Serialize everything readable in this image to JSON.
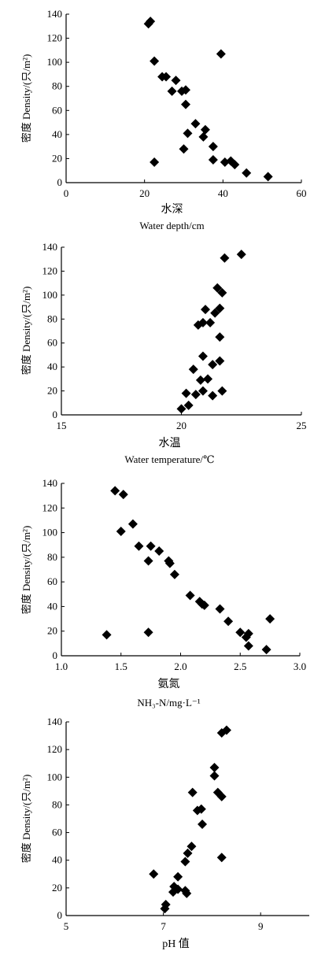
{
  "chart_data": [
    {
      "type": "scatter",
      "ylabel": "密度 Density/(只/m²)",
      "xlabel_cn": "水深",
      "xlabel_en": "Water depth/cm",
      "xlim": [
        0,
        60
      ],
      "ylim": [
        0,
        140
      ],
      "xticks": [
        0,
        20,
        40,
        60
      ],
      "xtick_labels": [
        "0",
        "20",
        "40",
        "60"
      ],
      "yticks": [
        0,
        20,
        40,
        60,
        80,
        100,
        120,
        140
      ],
      "ytick_labels": [
        "0",
        "20",
        "40",
        "60",
        "80",
        "100",
        "120",
        "140"
      ],
      "grid": false,
      "marker": "diamond",
      "points": [
        {
          "x": 21,
          "y": 132
        },
        {
          "x": 21.5,
          "y": 134
        },
        {
          "x": 39.5,
          "y": 107
        },
        {
          "x": 22.5,
          "y": 101
        },
        {
          "x": 24.5,
          "y": 88
        },
        {
          "x": 25.5,
          "y": 88
        },
        {
          "x": 28,
          "y": 85
        },
        {
          "x": 27,
          "y": 76
        },
        {
          "x": 29.5,
          "y": 76
        },
        {
          "x": 30.5,
          "y": 77
        },
        {
          "x": 30.5,
          "y": 65
        },
        {
          "x": 33,
          "y": 49
        },
        {
          "x": 35.5,
          "y": 44
        },
        {
          "x": 31,
          "y": 41
        },
        {
          "x": 35,
          "y": 38
        },
        {
          "x": 37.5,
          "y": 30
        },
        {
          "x": 30,
          "y": 28
        },
        {
          "x": 37.5,
          "y": 19
        },
        {
          "x": 40.5,
          "y": 17
        },
        {
          "x": 42,
          "y": 18
        },
        {
          "x": 43,
          "y": 15
        },
        {
          "x": 22.5,
          "y": 17
        },
        {
          "x": 46,
          "y": 8
        },
        {
          "x": 51.5,
          "y": 5
        }
      ]
    },
    {
      "type": "scatter",
      "ylabel": "密度 Density/(只/m²)",
      "xlabel_cn": "水温",
      "xlabel_en": "Water temperature/℃",
      "xlim": [
        15,
        25
      ],
      "ylim": [
        0,
        140
      ],
      "xticks": [
        15,
        20,
        25
      ],
      "xtick_labels": [
        "15",
        "20",
        "25"
      ],
      "yticks": [
        0,
        20,
        40,
        60,
        80,
        100,
        120,
        140
      ],
      "ytick_labels": [
        "0",
        "20",
        "40",
        "60",
        "80",
        "100",
        "120",
        "140"
      ],
      "grid": false,
      "marker": "diamond",
      "points": [
        {
          "x": 22.5,
          "y": 134
        },
        {
          "x": 21.8,
          "y": 131
        },
        {
          "x": 21.5,
          "y": 106
        },
        {
          "x": 21.7,
          "y": 102
        },
        {
          "x": 21.6,
          "y": 89
        },
        {
          "x": 21.0,
          "y": 88
        },
        {
          "x": 21.4,
          "y": 85
        },
        {
          "x": 20.9,
          "y": 77
        },
        {
          "x": 21.2,
          "y": 77
        },
        {
          "x": 20.7,
          "y": 75
        },
        {
          "x": 21.6,
          "y": 65
        },
        {
          "x": 20.9,
          "y": 49
        },
        {
          "x": 21.6,
          "y": 45
        },
        {
          "x": 21.3,
          "y": 42
        },
        {
          "x": 20.5,
          "y": 38
        },
        {
          "x": 21.1,
          "y": 30
        },
        {
          "x": 20.8,
          "y": 29
        },
        {
          "x": 21.7,
          "y": 20
        },
        {
          "x": 20.9,
          "y": 20
        },
        {
          "x": 20.2,
          "y": 18
        },
        {
          "x": 20.6,
          "y": 17
        },
        {
          "x": 21.3,
          "y": 16
        },
        {
          "x": 20.3,
          "y": 8
        },
        {
          "x": 20.0,
          "y": 5
        }
      ]
    },
    {
      "type": "scatter",
      "ylabel": "密度 Density/(只/m²)",
      "xlabel_cn": "氨氮",
      "xlabel_en": "NH₃-N/mg·L⁻¹",
      "xlim": [
        1.0,
        3.0
      ],
      "ylim": [
        0,
        140
      ],
      "xticks": [
        1.0,
        1.5,
        2.0,
        2.5,
        3.0
      ],
      "xtick_labels": [
        "1.0",
        "1.5",
        "2.0",
        "2.5",
        "3.0"
      ],
      "yticks": [
        0,
        20,
        40,
        60,
        80,
        100,
        120,
        140
      ],
      "ytick_labels": [
        "0",
        "20",
        "40",
        "60",
        "80",
        "100",
        "120",
        "140"
      ],
      "grid": false,
      "marker": "diamond",
      "points": [
        {
          "x": 1.45,
          "y": 134
        },
        {
          "x": 1.52,
          "y": 131
        },
        {
          "x": 1.6,
          "y": 107
        },
        {
          "x": 1.5,
          "y": 101
        },
        {
          "x": 1.65,
          "y": 89
        },
        {
          "x": 1.75,
          "y": 89
        },
        {
          "x": 1.82,
          "y": 85
        },
        {
          "x": 1.73,
          "y": 77
        },
        {
          "x": 1.9,
          "y": 77
        },
        {
          "x": 1.91,
          "y": 75
        },
        {
          "x": 1.95,
          "y": 66
        },
        {
          "x": 2.08,
          "y": 49
        },
        {
          "x": 2.16,
          "y": 44
        },
        {
          "x": 2.18,
          "y": 42
        },
        {
          "x": 2.2,
          "y": 41
        },
        {
          "x": 2.33,
          "y": 38
        },
        {
          "x": 2.75,
          "y": 30
        },
        {
          "x": 2.4,
          "y": 28
        },
        {
          "x": 1.73,
          "y": 19
        },
        {
          "x": 2.5,
          "y": 19
        },
        {
          "x": 2.57,
          "y": 18
        },
        {
          "x": 1.38,
          "y": 17
        },
        {
          "x": 2.55,
          "y": 15
        },
        {
          "x": 2.57,
          "y": 8
        },
        {
          "x": 2.72,
          "y": 5
        }
      ]
    },
    {
      "type": "scatter",
      "ylabel": "密度 Density/(只/m²)",
      "xlabel_cn": "pH 值",
      "xlabel_en": "",
      "xlim": [
        5,
        10
      ],
      "ylim": [
        0,
        140
      ],
      "xticks": [
        5,
        7,
        9
      ],
      "xtick_labels": [
        "5",
        "7",
        "9"
      ],
      "yticks": [
        0,
        20,
        40,
        60,
        80,
        100,
        120,
        140
      ],
      "ytick_labels": [
        "0",
        "20",
        "40",
        "60",
        "80",
        "100",
        "120",
        "140"
      ],
      "grid": false,
      "marker": "diamond",
      "points": [
        {
          "x": 8.3,
          "y": 134
        },
        {
          "x": 8.2,
          "y": 132
        },
        {
          "x": 8.05,
          "y": 107
        },
        {
          "x": 8.05,
          "y": 101
        },
        {
          "x": 7.6,
          "y": 89
        },
        {
          "x": 8.12,
          "y": 89
        },
        {
          "x": 8.2,
          "y": 86
        },
        {
          "x": 7.78,
          "y": 77
        },
        {
          "x": 7.7,
          "y": 76
        },
        {
          "x": 7.8,
          "y": 66
        },
        {
          "x": 7.58,
          "y": 50
        },
        {
          "x": 7.5,
          "y": 45
        },
        {
          "x": 8.2,
          "y": 42
        },
        {
          "x": 7.45,
          "y": 39
        },
        {
          "x": 6.8,
          "y": 30
        },
        {
          "x": 7.3,
          "y": 28
        },
        {
          "x": 7.22,
          "y": 21
        },
        {
          "x": 7.3,
          "y": 19
        },
        {
          "x": 7.45,
          "y": 18
        },
        {
          "x": 7.2,
          "y": 17
        },
        {
          "x": 7.48,
          "y": 16
        },
        {
          "x": 7.05,
          "y": 8
        },
        {
          "x": 7.03,
          "y": 5
        }
      ]
    }
  ]
}
